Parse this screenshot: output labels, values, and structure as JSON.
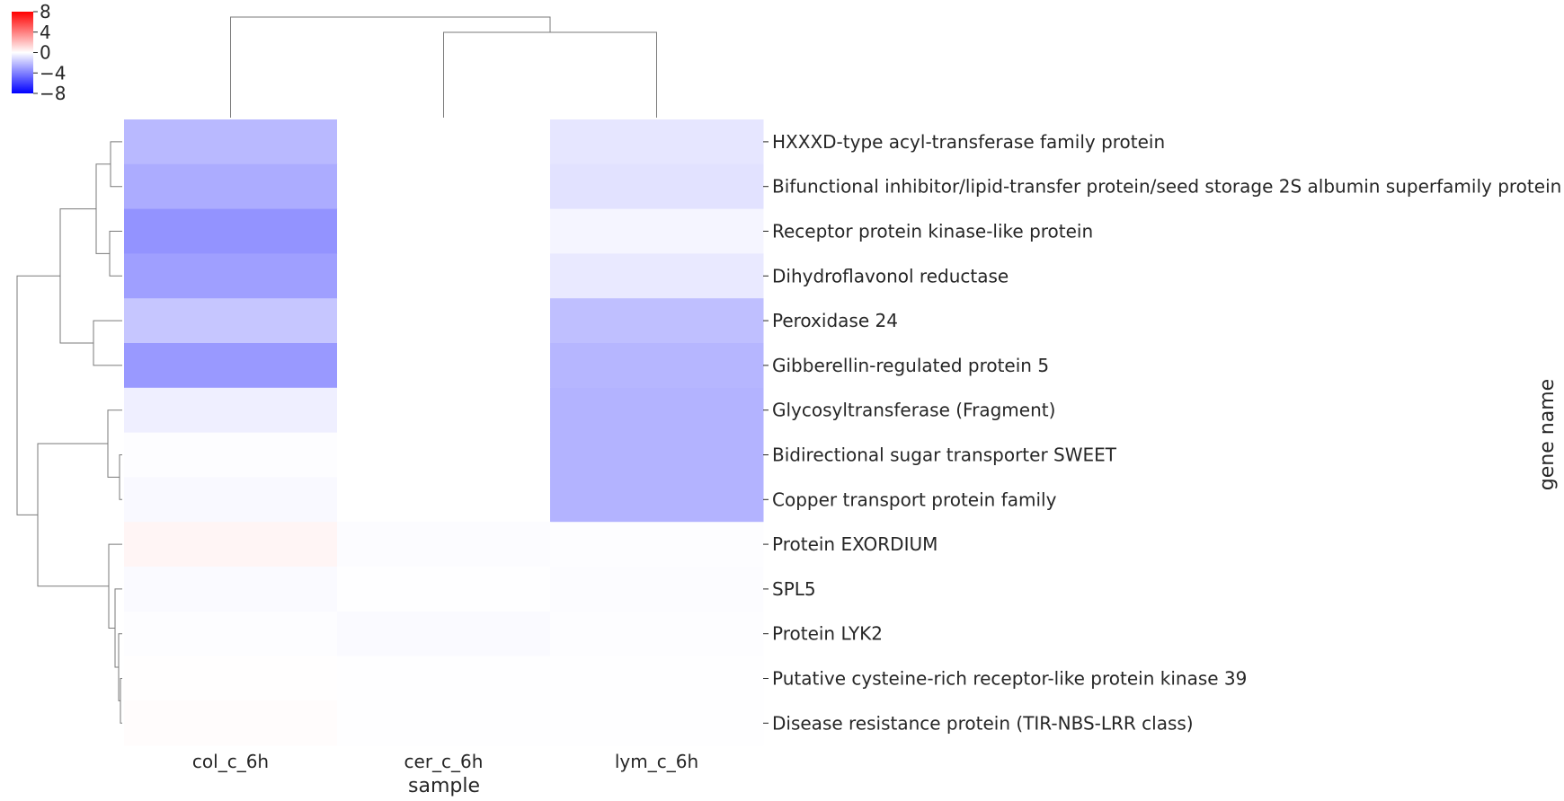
{
  "chart_data": {
    "type": "heatmap",
    "title": "",
    "xlabel": "sample",
    "ylabel": "gene name",
    "x": [
      "col_c_6h",
      "cer_c_6h",
      "lym_c_6h"
    ],
    "y": [
      "HXXXD-type acyl-transferase family protein",
      "Bifunctional inhibitor/lipid-transfer protein/seed storage 2S albumin superfamily protein",
      "Receptor protein kinase-like protein",
      "Dihydroflavonol reductase",
      "Peroxidase 24",
      "Gibberellin-regulated protein 5",
      "Glycosyltransferase (Fragment)",
      "Bidirectional sugar transporter SWEET",
      "Copper transport protein family",
      "Protein EXORDIUM",
      "SPL5",
      "Protein LYK2",
      "Putative cysteine-rich receptor-like protein kinase 39",
      "Disease resistance protein (TIR-NBS-LRR class)"
    ],
    "values": [
      [
        -2.2,
        0.0,
        -0.8
      ],
      [
        -2.6,
        0.0,
        -0.9
      ],
      [
        -3.4,
        0.0,
        -0.3
      ],
      [
        -3.0,
        0.0,
        -0.7
      ],
      [
        -1.8,
        0.0,
        -2.0
      ],
      [
        -3.2,
        0.0,
        -2.3
      ],
      [
        -0.5,
        0.0,
        -2.4
      ],
      [
        -0.05,
        0.0,
        -2.4
      ],
      [
        -0.2,
        0.0,
        -2.4
      ],
      [
        0.3,
        -0.1,
        -0.05
      ],
      [
        -0.15,
        -0.02,
        -0.1
      ],
      [
        -0.05,
        -0.15,
        -0.05
      ],
      [
        0.02,
        -0.02,
        -0.02
      ],
      [
        0.1,
        -0.02,
        -0.02
      ]
    ],
    "colorbar": {
      "ticks": [
        8,
        4,
        0,
        -4,
        -8
      ],
      "range": [
        -8,
        8
      ],
      "colors": [
        "#0000ff",
        "#ffffff",
        "#ff0000"
      ]
    },
    "column_dendrogram": "top",
    "row_dendrogram": "left",
    "grid": false
  }
}
